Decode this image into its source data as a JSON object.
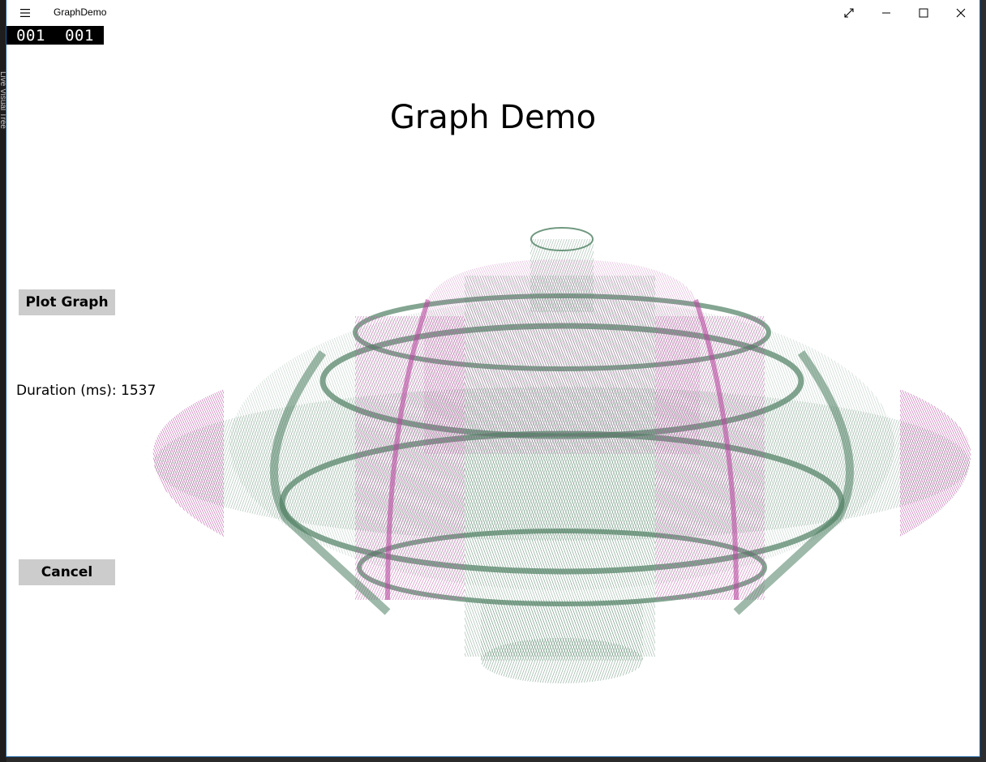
{
  "app": {
    "title": "GraphDemo"
  },
  "titlebar": {
    "menu_icon": "hamburger-icon",
    "compact_icon": "expand-arrows-icon",
    "minimize_icon": "minimize-icon",
    "maximize_icon": "maximize-icon",
    "close_icon": "close-icon"
  },
  "frame_counter": {
    "left": "001",
    "right": "001"
  },
  "page": {
    "title": "Graph Demo"
  },
  "controls": {
    "plot_label": "Plot Graph",
    "cancel_label": "Cancel",
    "duration_text": "Duration (ms): 1537"
  },
  "desktop": {
    "left_panel_text": "Live Visual Tree"
  },
  "colors": {
    "green": "#4e7f62",
    "magenta": "#b84aa0",
    "button_bg": "#cccccc"
  }
}
